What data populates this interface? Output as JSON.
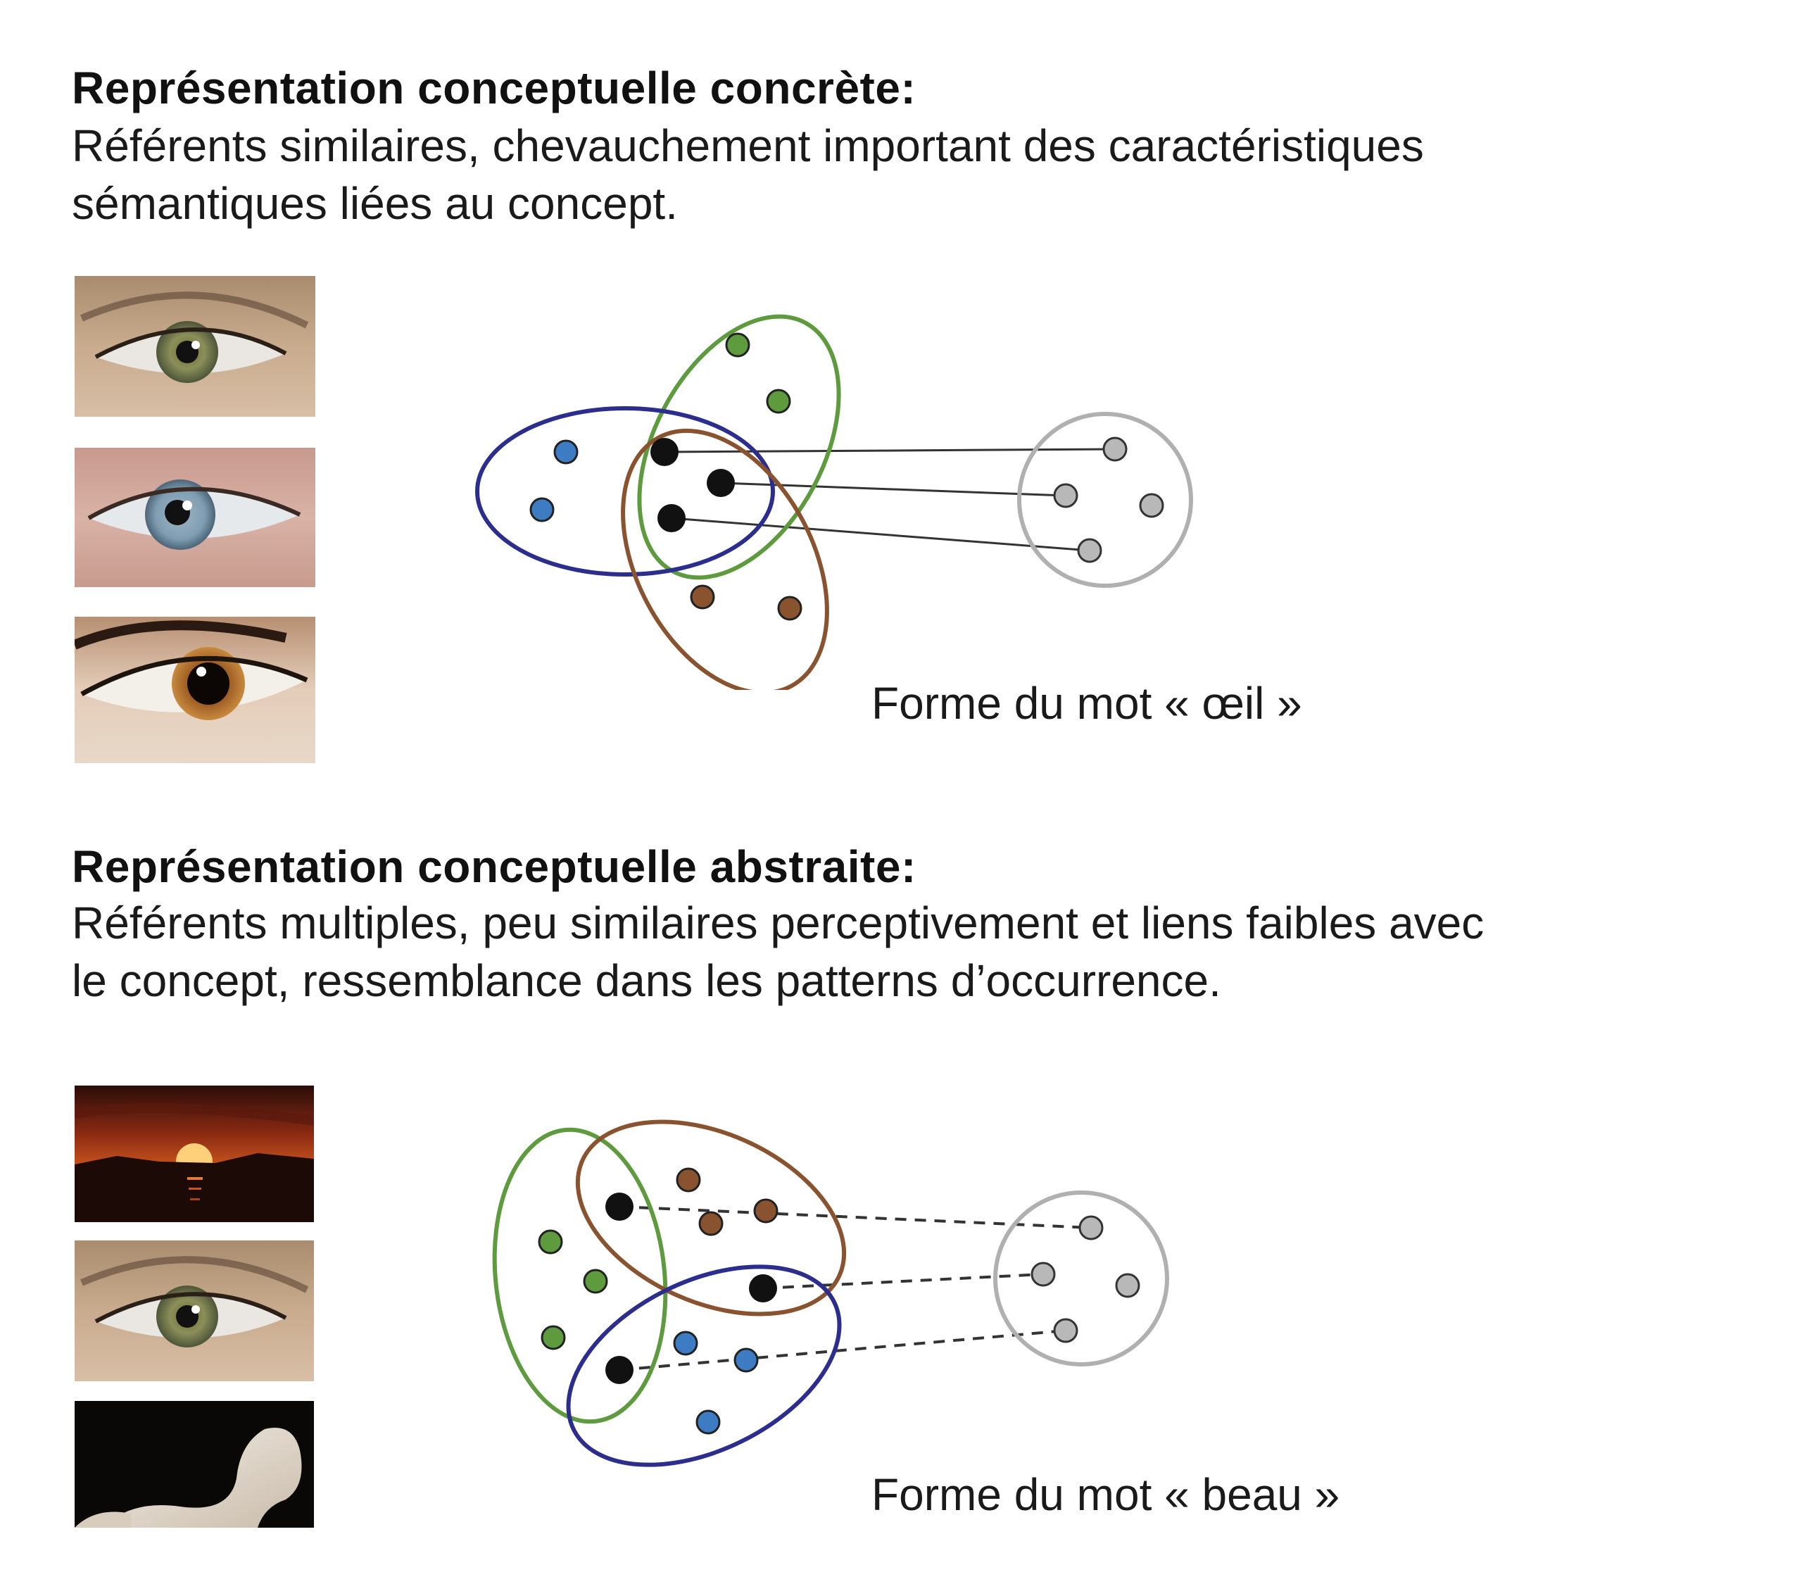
{
  "concrete": {
    "heading": "Représentation conceptuelle concrète:",
    "description_lines": [
      "Référents similaires, chevauchement important des caractéristiques",
      "sémantiques liées au concept."
    ],
    "images": [
      "eye-green",
      "eye-blue",
      "eye-brown"
    ],
    "caption": "Forme du mot « œil »",
    "link_style": "solid"
  },
  "abstract": {
    "heading": "Représentation conceptuelle abstraite:",
    "description_lines": [
      "Référents multiples, peu similaires perceptivement et liens faibles avec",
      "le concept, ressemblance dans les patterns d’occurrence."
    ],
    "images": [
      "sunset",
      "eye-green",
      "sculpture"
    ],
    "caption": "Forme du mot « beau »",
    "link_style": "dashed"
  },
  "colors": {
    "green": "#5e9a3e",
    "blue": "#2b2e8c",
    "brown": "#8a5330",
    "gray": "#a9a9a9",
    "dot_blue": "#3d7cc3",
    "dot_green": "#5e9a3e",
    "dot_brown": "#8a5330",
    "dot_gray": "#b8b8b8",
    "link": "#333333"
  }
}
